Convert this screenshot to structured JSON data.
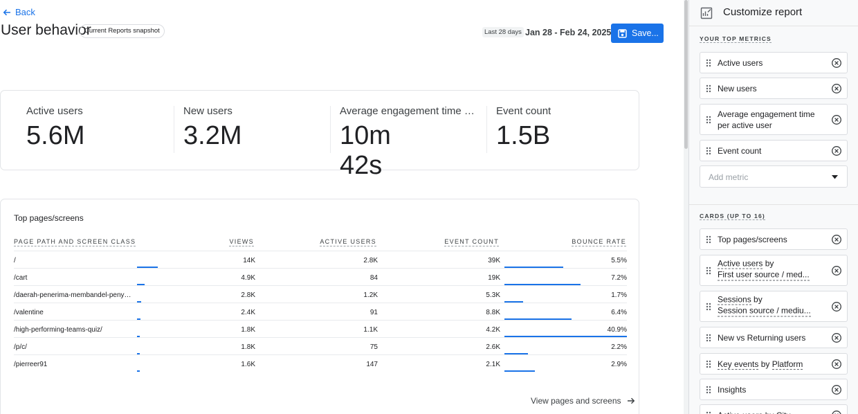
{
  "header": {
    "back_label": "Back",
    "title": "User behavior",
    "snapshot_chip": "Current Reports snapshot",
    "date_chip": "Last 28 days",
    "date_range": "Jan 28 - Feb 24, 2025",
    "save_label": "Save..."
  },
  "metrics": [
    {
      "label": "Active users",
      "value": "5.6M"
    },
    {
      "label": "New users",
      "value": "3.2M"
    },
    {
      "label": "Average engagement time pe...",
      "value": "10m 42s"
    },
    {
      "label": "Event count",
      "value": "1.5B"
    }
  ],
  "table": {
    "title": "Top pages/screens",
    "columns": [
      "PAGE PATH AND SCREEN CLASS",
      "VIEWS",
      "ACTIVE USERS",
      "EVENT COUNT",
      "BOUNCE RATE"
    ],
    "rows": [
      {
        "path": "/",
        "views": "14K",
        "active_users": "2.8K",
        "event_count": "39K",
        "bounce_rate": "5.5%",
        "views_bar": 1.0,
        "bounce_bar": 0.48
      },
      {
        "path": "/cart",
        "views": "4.9K",
        "active_users": "84",
        "event_count": "19K",
        "bounce_rate": "7.2%",
        "views_bar": 0.35,
        "bounce_bar": 0.62
      },
      {
        "path": "/daerah-penerima-membandel-penyal...",
        "views": "2.8K",
        "active_users": "1.2K",
        "event_count": "5.3K",
        "bounce_rate": "1.7%",
        "views_bar": 0.2,
        "bounce_bar": 0.15
      },
      {
        "path": "/valentine",
        "views": "2.4K",
        "active_users": "91",
        "event_count": "8.8K",
        "bounce_rate": "6.4%",
        "views_bar": 0.17,
        "bounce_bar": 0.55
      },
      {
        "path": "/high-performing-teams-quiz/",
        "views": "1.8K",
        "active_users": "1.1K",
        "event_count": "4.2K",
        "bounce_rate": "40.9%",
        "views_bar": 0.13,
        "bounce_bar": 1.0
      },
      {
        "path": "/p/c/",
        "views": "1.8K",
        "active_users": "75",
        "event_count": "2.6K",
        "bounce_rate": "2.2%",
        "views_bar": 0.13,
        "bounce_bar": 0.19
      },
      {
        "path": "/pierreer91",
        "views": "1.6K",
        "active_users": "147",
        "event_count": "2.1K",
        "bounce_rate": "2.9%",
        "views_bar": 0.12,
        "bounce_bar": 0.25
      }
    ],
    "view_link": "View pages and screens"
  },
  "panel": {
    "title": "Customize report",
    "top_metrics_label": "YOUR TOP METRICS",
    "top_metrics": [
      "Active users",
      "New users",
      "Average engagement time per active user",
      "Event count"
    ],
    "add_metric_placeholder": "Add metric",
    "cards_label": "CARDS (UP TO 16)",
    "cards": [
      {
        "line1": "Top pages/screens"
      },
      {
        "line1": "Active users",
        "by": "by",
        "line2": "First user source / med..."
      },
      {
        "line1": "Sessions",
        "by": "by",
        "line2": "Session source / mediu..."
      },
      {
        "line1": "New vs Returning users"
      },
      {
        "line1": "Key events",
        "by": "by",
        "dim": "Platform"
      },
      {
        "line1": "Insights"
      },
      {
        "line1": "Active users by City"
      }
    ]
  },
  "icons": {
    "back": "arrow-left-icon",
    "save": "save-icon",
    "view_link": "arrow-right-icon",
    "panel": "customize-chart-icon",
    "drag": "drag-handle-icon",
    "remove": "remove-circle-icon"
  },
  "colors": {
    "accent": "#1a73e8",
    "text": "#202124",
    "panel_bg": "#f8f9fa"
  }
}
